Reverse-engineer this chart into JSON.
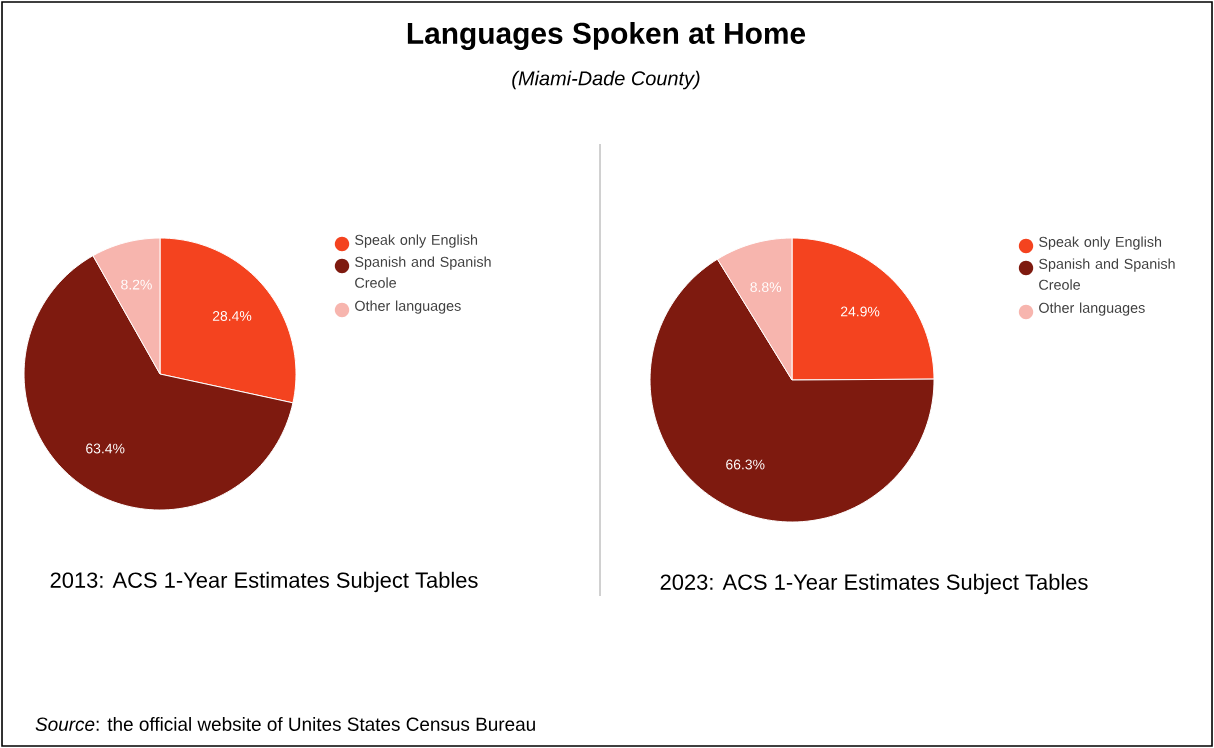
{
  "chart_data": [
    {
      "type": "pie",
      "title": "Languages Spoken at Home",
      "subtitle": "(Miami-Dade County)",
      "xlabel": "2013: ACS 1-Year Estimates Subject Tables",
      "categories": [
        "Speak only English",
        "Spanish and Spanish Creole",
        "Other languages"
      ],
      "values": [
        28.4,
        63.4,
        8.2
      ],
      "value_labels": [
        "28.4%",
        "63.4%",
        "8.2%"
      ],
      "colors": [
        "#f4431f",
        "#7e1a0f",
        "#f7b5ae"
      ],
      "legend": "right",
      "annotations": [
        "*Source*: the official website of Unites States Census Bureau"
      ]
    },
    {
      "type": "pie",
      "xlabel": "2023: ACS 1-Year Estimates Subject Tables",
      "categories": [
        "Speak only English",
        "Spanish and Spanish Creole",
        "Other languages"
      ],
      "values": [
        24.9,
        66.3,
        8.8
      ],
      "value_labels": [
        "24.9%",
        "66.3%",
        "8.8%"
      ],
      "colors": [
        "#f4431f",
        "#7e1a0f",
        "#f7b5ae"
      ],
      "legend": "right"
    }
  ]
}
